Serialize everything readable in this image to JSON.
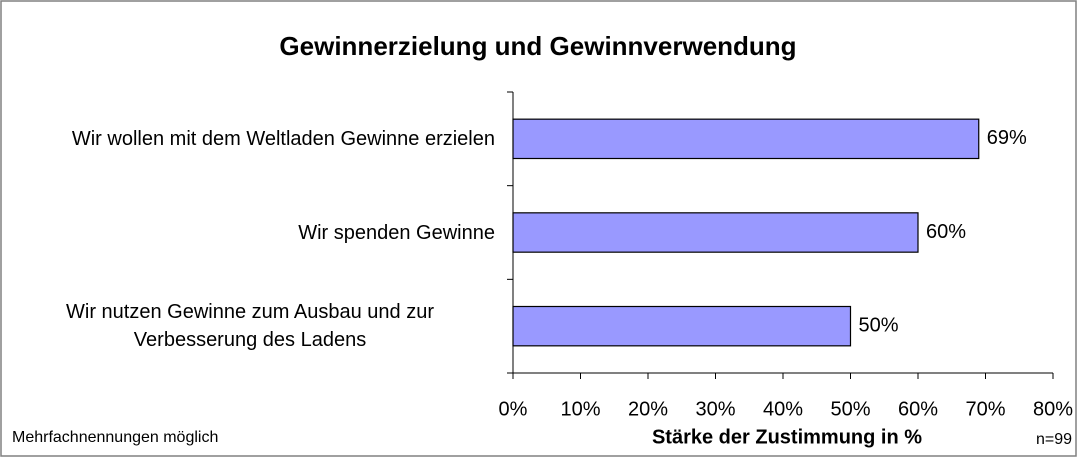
{
  "chart_data": {
    "type": "bar",
    "orientation": "horizontal",
    "title": "Gewinnerzielung und Gewinnverwendung",
    "xlabel": "Stärke der Zustimmung in %",
    "note": "Mehrfachnennungen möglich",
    "sample": "n=99",
    "categories": [
      "Wir wollen mit dem Weltladen Gewinne erzielen",
      "Wir spenden Gewinne",
      "Wir nutzen Gewinne zum Ausbau und zur Verbesserung des Ladens"
    ],
    "values": [
      69,
      60,
      50
    ],
    "value_labels": [
      "69%",
      "60%",
      "50%"
    ],
    "color": "#9999ff",
    "xlim": [
      0,
      80
    ],
    "xticks": [
      {
        "value": 0,
        "label": "0%"
      },
      {
        "value": 10,
        "label": "10%"
      },
      {
        "value": 20,
        "label": "20%"
      },
      {
        "value": 30,
        "label": "30%"
      },
      {
        "value": 40,
        "label": "40%"
      },
      {
        "value": 50,
        "label": "50%"
      },
      {
        "value": 60,
        "label": "60%"
      },
      {
        "value": 70,
        "label": "70%"
      },
      {
        "value": 80,
        "label": "80%"
      }
    ]
  }
}
